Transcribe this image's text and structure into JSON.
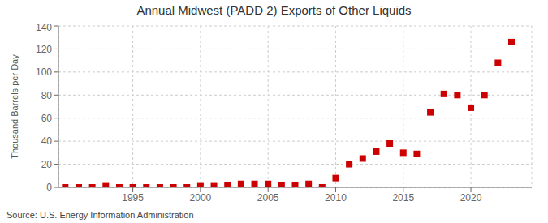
{
  "chart_data": {
    "type": "scatter",
    "title": "Annual Midwest (PADD 2) Exports of Other Liquids",
    "ylabel": "Thousand Barrels per Day",
    "source": "Source: U.S. Energy Information Administration",
    "x": [
      1990,
      1991,
      1992,
      1993,
      1994,
      1995,
      1996,
      1997,
      1998,
      1999,
      2000,
      2001,
      2002,
      2003,
      2004,
      2005,
      2006,
      2007,
      2008,
      2009,
      2010,
      2011,
      2012,
      2013,
      2014,
      2015,
      2016,
      2017,
      2018,
      2019,
      2020,
      2021,
      2022,
      2023
    ],
    "values": [
      0,
      0,
      0,
      1,
      0,
      0,
      0,
      0,
      0,
      0,
      1,
      1,
      2,
      3,
      3,
      3,
      2,
      2,
      3,
      0,
      8,
      20,
      25,
      31,
      38,
      30,
      29,
      65,
      81,
      80,
      69,
      80,
      108,
      126
    ],
    "color": "#cc0000",
    "marker": "square",
    "xlim": [
      1989.5,
      2024.5
    ],
    "xticks": [
      1995,
      2000,
      2005,
      2010,
      2015,
      2020
    ],
    "ylim": [
      0,
      140
    ],
    "yticks": [
      0,
      20,
      40,
      60,
      80,
      100,
      120,
      140
    ],
    "grid": true
  }
}
